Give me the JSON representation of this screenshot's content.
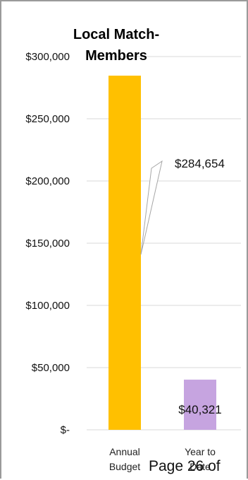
{
  "chart_data": {
    "type": "bar",
    "title": [
      "Local Match-",
      "Members"
    ],
    "categories": [
      [
        "Annual",
        "Budget"
      ],
      [
        "Year to",
        "Date"
      ]
    ],
    "values": [
      284654,
      40321
    ],
    "value_labels": [
      "$284,654",
      "$40,321"
    ],
    "colors": [
      "#ffc000",
      "#c6a4e0"
    ],
    "yticks": [
      0,
      50000,
      100000,
      150000,
      200000,
      250000,
      300000
    ],
    "ytick_labels": [
      "$-",
      "$50,000",
      "$100,000",
      "$150,000",
      "$200,000",
      "$250,000",
      "$300,000"
    ],
    "ylim": [
      0,
      300000
    ],
    "grid": true,
    "legend": "none"
  },
  "footer": {
    "page_text": "Page 26 of"
  }
}
